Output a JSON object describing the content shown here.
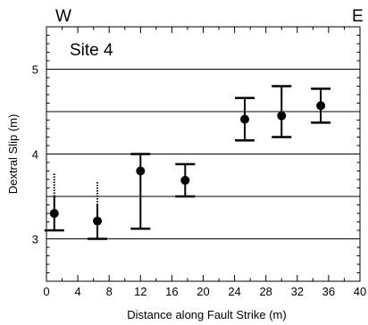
{
  "chart_data": {
    "type": "scatter",
    "title": "",
    "annotation": "Site 4",
    "corner_labels": {
      "left": "W",
      "right": "E"
    },
    "xlabel": "Distance along Fault Strike (m)",
    "ylabel": "Dextral Slip (m)",
    "xlim": [
      0,
      40
    ],
    "ylim": [
      2.5,
      5.5
    ],
    "x_ticks": [
      0,
      4,
      8,
      12,
      16,
      20,
      24,
      28,
      32,
      36,
      40
    ],
    "x_tick_labels": [
      "0",
      "4",
      "8",
      "12",
      "16",
      "20",
      "24",
      "28",
      "32",
      "36",
      "40"
    ],
    "y_ticks": [
      3,
      4,
      5
    ],
    "y_tick_labels": [
      "3",
      "4",
      "5"
    ],
    "grid": {
      "horizontal": [
        3,
        3.5,
        4,
        4.5,
        5
      ],
      "vertical": false
    },
    "series": [
      {
        "points": [
          {
            "x": 1.0,
            "y": 3.3,
            "low": 3.1,
            "high": 3.5,
            "dotted_high": 3.77
          },
          {
            "x": 6.5,
            "y": 3.21,
            "low": 3.0,
            "high": 3.4,
            "dotted_high": 3.67
          },
          {
            "x": 12.0,
            "y": 3.8,
            "low": 3.12,
            "high": 4.0
          },
          {
            "x": 17.7,
            "y": 3.69,
            "low": 3.5,
            "high": 3.88
          },
          {
            "x": 25.3,
            "y": 4.41,
            "low": 4.16,
            "high": 4.66
          },
          {
            "x": 30.0,
            "y": 4.45,
            "low": 4.2,
            "high": 4.8
          },
          {
            "x": 35.0,
            "y": 4.57,
            "low": 4.37,
            "high": 4.77
          }
        ]
      }
    ],
    "colors": {
      "marker": "#000000",
      "grid": "#000000",
      "frame": "#000000"
    }
  }
}
